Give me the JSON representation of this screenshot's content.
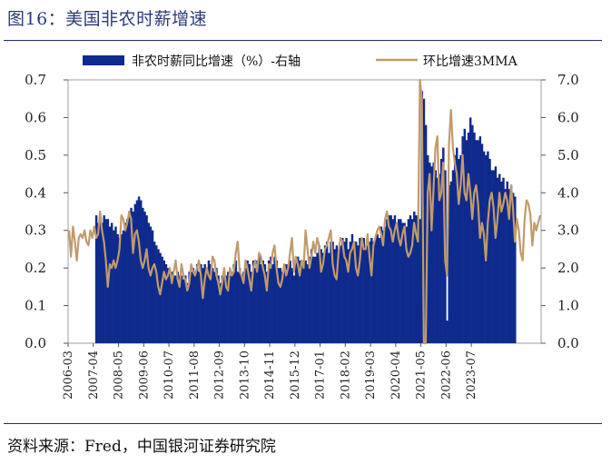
{
  "title": "图16：美国非农时薪增速",
  "source": "资料来源：Fred，中国银河证券研究院",
  "chart_data": {
    "type": "bar+line",
    "x_start": "2006-03",
    "x_tick_labels": [
      "2006-03",
      "2007-04",
      "2008-05",
      "2009-06",
      "2010-07",
      "2011-08",
      "2012-09",
      "2013-10",
      "2014-11",
      "2015-12",
      "2017-01",
      "2018-02",
      "2019-03",
      "2020-04",
      "2021-05",
      "2022-06",
      "2023-07"
    ],
    "y_left": {
      "min": 0.0,
      "max": 0.7,
      "ticks": [
        "0.0",
        "0.1",
        "0.2",
        "0.3",
        "0.4",
        "0.5",
        "0.6",
        "0.7"
      ]
    },
    "y_right": {
      "min": 0.0,
      "max": 7.0,
      "ticks": [
        "0.0",
        "1.0",
        "2.0",
        "3.0",
        "4.0",
        "5.0",
        "6.0",
        "7.0"
      ]
    },
    "legend_position": "top",
    "series": [
      {
        "name": "非农时薪同比增速（%）-右轴",
        "kind": "bar",
        "axis": "right",
        "color": "#0e2a8c",
        "values": [
          null,
          null,
          null,
          null,
          null,
          null,
          null,
          null,
          null,
          null,
          null,
          null,
          null,
          null,
          3.4,
          3.2,
          3.4,
          3.2,
          3.4,
          3.3,
          3.3,
          3.1,
          3.2,
          3.0,
          3.1,
          2.9,
          2.8,
          2.9,
          3.0,
          3.2,
          3.3,
          3.4,
          3.6,
          3.5,
          3.7,
          3.8,
          3.9,
          3.8,
          3.6,
          3.5,
          3.4,
          3.2,
          3.1,
          3.0,
          2.7,
          2.6,
          2.5,
          2.4,
          2.3,
          2.2,
          2.1,
          2.0,
          1.9,
          1.9,
          1.8,
          1.8,
          1.9,
          1.8,
          1.8,
          1.7,
          1.8,
          1.6,
          1.9,
          1.9,
          2.0,
          1.9,
          2.1,
          1.9,
          2.1,
          2.0,
          2.1,
          2.0,
          2.2,
          2.1,
          2.0,
          1.9,
          2.0,
          1.8,
          1.6,
          1.8,
          1.9,
          1.8,
          1.9,
          1.8,
          1.9,
          2.1,
          2.2,
          1.9,
          2.0,
          1.8,
          1.9,
          2.0,
          2.2,
          2.1,
          1.9,
          2.2,
          2.0,
          2.2,
          2.3,
          2.1,
          2.2,
          2.1,
          1.9,
          2.2,
          2.3,
          2.1,
          2.3,
          2.2,
          2.0,
          2.0,
          1.9,
          2.1,
          2.1,
          2.0,
          2.2,
          2.0,
          1.8,
          2.2,
          2.3,
          2.2,
          2.1,
          2.2,
          2.2,
          2.1,
          2.3,
          2.5,
          2.3,
          2.3,
          2.4,
          2.6,
          2.5,
          2.4,
          2.6,
          2.7,
          2.4,
          2.7,
          2.7,
          2.5,
          2.6,
          2.5,
          2.6,
          2.8,
          2.7,
          2.8,
          2.5,
          2.7,
          2.9,
          2.7,
          2.7,
          2.6,
          2.8,
          2.7,
          2.8,
          2.5,
          2.6,
          2.7,
          2.8,
          2.7,
          2.8,
          2.9,
          2.8,
          3.1,
          3.0,
          3.1,
          3.3,
          3.4,
          3.4,
          3.3,
          3.4,
          3.2,
          3.3,
          3.3,
          3.2,
          3.2,
          3.1,
          3.3,
          3.4,
          3.3,
          3.5,
          3.4,
          3.4,
          3.3,
          6.7,
          6.5,
          5.8,
          5.0,
          4.8,
          4.7,
          4.8,
          4.6,
          4.4,
          4.5,
          4.9,
          5.2,
          4.6,
          0.6,
          4.2,
          4.3,
          4.6,
          5.0,
          5.2,
          4.9,
          5.0,
          5.5,
          5.7,
          5.4,
          5.6,
          6.0,
          5.8,
          5.6,
          5.4,
          5.4,
          5.5,
          5.3,
          5.1,
          5.0,
          5.1,
          4.9,
          4.6,
          4.6,
          4.7,
          4.4,
          4.5,
          4.3,
          4.4,
          4.1,
          4.3,
          4.1,
          4.2,
          4.0,
          3.9
        ]
      },
      {
        "name": "环比增速3MMA",
        "kind": "line",
        "axis": "left",
        "color": "#c19a6b",
        "values": [
          0.3,
          0.23,
          0.31,
          0.27,
          0.22,
          0.28,
          0.29,
          0.28,
          0.3,
          0.27,
          0.26,
          0.3,
          0.28,
          0.31,
          0.28,
          0.29,
          0.35,
          0.3,
          0.27,
          0.22,
          0.15,
          0.21,
          0.2,
          0.22,
          0.2,
          0.22,
          0.25,
          0.34,
          0.33,
          0.3,
          0.32,
          0.35,
          0.33,
          0.24,
          0.29,
          0.3,
          0.27,
          0.22,
          0.2,
          0.22,
          0.25,
          0.2,
          0.18,
          0.2,
          0.21,
          0.19,
          0.15,
          0.13,
          0.16,
          0.19,
          0.17,
          0.18,
          0.2,
          0.16,
          0.19,
          0.22,
          0.17,
          0.15,
          0.21,
          0.18,
          0.17,
          0.14,
          0.16,
          0.21,
          0.19,
          0.18,
          0.2,
          0.22,
          0.18,
          0.12,
          0.17,
          0.2,
          0.18,
          0.17,
          0.23,
          0.22,
          0.18,
          0.16,
          0.13,
          0.16,
          0.2,
          0.15,
          0.14,
          0.2,
          0.18,
          0.19,
          0.24,
          0.27,
          0.19,
          0.18,
          0.16,
          0.22,
          0.2,
          0.17,
          0.14,
          0.2,
          0.22,
          0.19,
          0.24,
          0.23,
          0.2,
          0.18,
          0.14,
          0.21,
          0.2,
          0.24,
          0.26,
          0.2,
          0.16,
          0.15,
          0.17,
          0.21,
          0.18,
          0.2,
          0.24,
          0.28,
          0.19,
          0.23,
          0.21,
          0.18,
          0.22,
          0.2,
          0.3,
          0.25,
          0.2,
          0.23,
          0.27,
          0.24,
          0.28,
          0.26,
          0.19,
          0.21,
          0.25,
          0.26,
          0.28,
          0.3,
          0.21,
          0.18,
          0.17,
          0.24,
          0.28,
          0.27,
          0.23,
          0.22,
          0.19,
          0.24,
          0.25,
          0.27,
          0.2,
          0.18,
          0.22,
          0.28,
          0.25,
          0.25,
          0.29,
          0.23,
          0.18,
          0.26,
          0.28,
          0.3,
          0.31,
          0.29,
          0.26,
          0.33,
          0.35,
          0.31,
          0.3,
          0.27,
          0.3,
          0.32,
          0.28,
          0.26,
          0.29,
          0.31,
          0.25,
          0.23,
          0.24,
          0.26,
          0.32,
          0.29,
          0.27,
          1.0,
          0.65,
          0.0,
          0.0,
          0.4,
          0.45,
          0.3,
          0.41,
          0.52,
          0.55,
          0.38,
          0.4,
          0.48,
          0.22,
          0.18,
          0.53,
          0.62,
          0.52,
          0.48,
          0.45,
          0.37,
          0.42,
          0.5,
          0.4,
          0.38,
          0.45,
          0.4,
          0.33,
          0.4,
          0.42,
          0.37,
          0.28,
          0.32,
          0.29,
          0.22,
          0.32,
          0.38,
          0.4,
          0.36,
          0.28,
          0.33,
          0.4,
          0.35,
          0.37,
          0.4,
          0.38,
          0.33,
          0.42,
          0.36,
          0.27,
          0.33,
          0.3,
          0.24,
          0.22,
          0.33,
          0.38,
          0.37,
          0.34,
          0.26,
          0.32,
          0.3,
          0.32,
          0.34
        ]
      }
    ]
  }
}
